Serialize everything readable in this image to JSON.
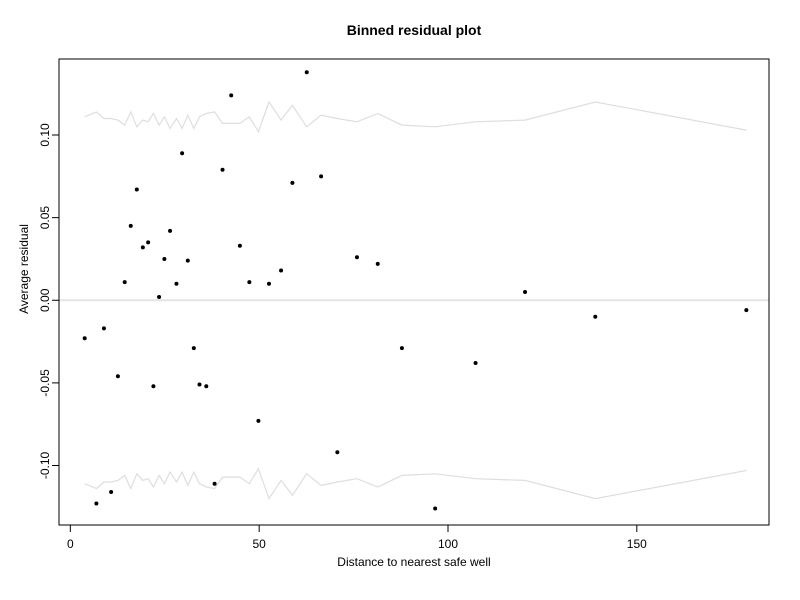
{
  "chart_data": {
    "type": "scatter",
    "title": "Binned residual plot",
    "xlabel": "Distance to nearest safe well",
    "ylabel": "Average residual",
    "xlim": [
      -3,
      185
    ],
    "ylim": [
      -0.136,
      0.146
    ],
    "x_ticks": [
      0,
      50,
      100,
      150
    ],
    "x_tick_labels": [
      "0",
      "50",
      "100",
      "150"
    ],
    "y_ticks": [
      -0.1,
      -0.05,
      0.0,
      0.05,
      0.1
    ],
    "y_tick_labels": [
      "-0.10",
      "-0.05",
      "0.00",
      "0.05",
      "0.10"
    ],
    "grid": false,
    "legend": "none",
    "colors": {
      "points": "#000000",
      "bands": "#dedede",
      "zero_line": "#e4e4e4",
      "frame": "#000000"
    },
    "reference_line": {
      "y": 0.0
    },
    "points": [
      {
        "x": 3.8,
        "y": -0.023
      },
      {
        "x": 6.9,
        "y": -0.123
      },
      {
        "x": 8.9,
        "y": -0.017
      },
      {
        "x": 10.8,
        "y": -0.116
      },
      {
        "x": 12.6,
        "y": -0.046
      },
      {
        "x": 14.4,
        "y": 0.011
      },
      {
        "x": 16.0,
        "y": 0.045
      },
      {
        "x": 17.6,
        "y": 0.067
      },
      {
        "x": 19.2,
        "y": 0.032
      },
      {
        "x": 20.6,
        "y": 0.035
      },
      {
        "x": 22.0,
        "y": -0.052
      },
      {
        "x": 23.5,
        "y": 0.002
      },
      {
        "x": 24.9,
        "y": 0.025
      },
      {
        "x": 26.4,
        "y": 0.042
      },
      {
        "x": 28.1,
        "y": 0.01
      },
      {
        "x": 29.6,
        "y": 0.089
      },
      {
        "x": 31.1,
        "y": 0.024
      },
      {
        "x": 32.7,
        "y": -0.029
      },
      {
        "x": 34.2,
        "y": -0.051
      },
      {
        "x": 36.0,
        "y": -0.052
      },
      {
        "x": 38.2,
        "y": -0.111
      },
      {
        "x": 40.3,
        "y": 0.079
      },
      {
        "x": 42.6,
        "y": 0.124
      },
      {
        "x": 44.9,
        "y": 0.033
      },
      {
        "x": 47.4,
        "y": 0.011
      },
      {
        "x": 49.8,
        "y": -0.073
      },
      {
        "x": 52.6,
        "y": 0.01
      },
      {
        "x": 55.8,
        "y": 0.018
      },
      {
        "x": 58.8,
        "y": 0.071
      },
      {
        "x": 62.6,
        "y": 0.138
      },
      {
        "x": 66.4,
        "y": 0.075
      },
      {
        "x": 70.7,
        "y": -0.092
      },
      {
        "x": 75.9,
        "y": 0.026
      },
      {
        "x": 81.4,
        "y": 0.022
      },
      {
        "x": 87.8,
        "y": -0.029
      },
      {
        "x": 96.6,
        "y": -0.126
      },
      {
        "x": 107.3,
        "y": -0.038
      },
      {
        "x": 120.4,
        "y": 0.005
      },
      {
        "x": 139.0,
        "y": -0.01
      },
      {
        "x": 179.0,
        "y": -0.006
      }
    ],
    "band_upper": [
      {
        "x": 3.8,
        "y": 0.111
      },
      {
        "x": 6.9,
        "y": 0.114
      },
      {
        "x": 8.9,
        "y": 0.11
      },
      {
        "x": 10.8,
        "y": 0.11
      },
      {
        "x": 12.6,
        "y": 0.109
      },
      {
        "x": 14.4,
        "y": 0.106
      },
      {
        "x": 16.0,
        "y": 0.114
      },
      {
        "x": 17.6,
        "y": 0.105
      },
      {
        "x": 19.2,
        "y": 0.109
      },
      {
        "x": 20.6,
        "y": 0.108
      },
      {
        "x": 22.0,
        "y": 0.113
      },
      {
        "x": 23.5,
        "y": 0.106
      },
      {
        "x": 24.9,
        "y": 0.111
      },
      {
        "x": 26.4,
        "y": 0.104
      },
      {
        "x": 28.1,
        "y": 0.11
      },
      {
        "x": 29.6,
        "y": 0.104
      },
      {
        "x": 31.1,
        "y": 0.112
      },
      {
        "x": 32.7,
        "y": 0.104
      },
      {
        "x": 34.2,
        "y": 0.111
      },
      {
        "x": 36.0,
        "y": 0.113
      },
      {
        "x": 38.2,
        "y": 0.114
      },
      {
        "x": 40.3,
        "y": 0.107
      },
      {
        "x": 42.6,
        "y": 0.107
      },
      {
        "x": 44.9,
        "y": 0.107
      },
      {
        "x": 47.4,
        "y": 0.111
      },
      {
        "x": 49.8,
        "y": 0.102
      },
      {
        "x": 52.6,
        "y": 0.12
      },
      {
        "x": 55.8,
        "y": 0.109
      },
      {
        "x": 58.8,
        "y": 0.118
      },
      {
        "x": 62.6,
        "y": 0.105
      },
      {
        "x": 66.4,
        "y": 0.112
      },
      {
        "x": 70.7,
        "y": 0.11
      },
      {
        "x": 75.9,
        "y": 0.108
      },
      {
        "x": 81.4,
        "y": 0.113
      },
      {
        "x": 87.8,
        "y": 0.106
      },
      {
        "x": 96.6,
        "y": 0.105
      },
      {
        "x": 107.3,
        "y": 0.108
      },
      {
        "x": 120.4,
        "y": 0.109
      },
      {
        "x": 139.0,
        "y": 0.12
      },
      {
        "x": 179.0,
        "y": 0.103
      }
    ],
    "band_lower": [
      {
        "x": 3.8,
        "y": -0.111
      },
      {
        "x": 6.9,
        "y": -0.114
      },
      {
        "x": 8.9,
        "y": -0.11
      },
      {
        "x": 10.8,
        "y": -0.11
      },
      {
        "x": 12.6,
        "y": -0.109
      },
      {
        "x": 14.4,
        "y": -0.106
      },
      {
        "x": 16.0,
        "y": -0.114
      },
      {
        "x": 17.6,
        "y": -0.105
      },
      {
        "x": 19.2,
        "y": -0.109
      },
      {
        "x": 20.6,
        "y": -0.108
      },
      {
        "x": 22.0,
        "y": -0.113
      },
      {
        "x": 23.5,
        "y": -0.106
      },
      {
        "x": 24.9,
        "y": -0.111
      },
      {
        "x": 26.4,
        "y": -0.104
      },
      {
        "x": 28.1,
        "y": -0.11
      },
      {
        "x": 29.6,
        "y": -0.104
      },
      {
        "x": 31.1,
        "y": -0.112
      },
      {
        "x": 32.7,
        "y": -0.104
      },
      {
        "x": 34.2,
        "y": -0.111
      },
      {
        "x": 36.0,
        "y": -0.113
      },
      {
        "x": 38.2,
        "y": -0.114
      },
      {
        "x": 40.3,
        "y": -0.107
      },
      {
        "x": 42.6,
        "y": -0.107
      },
      {
        "x": 44.9,
        "y": -0.107
      },
      {
        "x": 47.4,
        "y": -0.111
      },
      {
        "x": 49.8,
        "y": -0.102
      },
      {
        "x": 52.6,
        "y": -0.12
      },
      {
        "x": 55.8,
        "y": -0.109
      },
      {
        "x": 58.8,
        "y": -0.118
      },
      {
        "x": 62.6,
        "y": -0.105
      },
      {
        "x": 66.4,
        "y": -0.112
      },
      {
        "x": 70.7,
        "y": -0.11
      },
      {
        "x": 75.9,
        "y": -0.108
      },
      {
        "x": 81.4,
        "y": -0.113
      },
      {
        "x": 87.8,
        "y": -0.106
      },
      {
        "x": 96.6,
        "y": -0.105
      },
      {
        "x": 107.3,
        "y": -0.108
      },
      {
        "x": 120.4,
        "y": -0.109
      },
      {
        "x": 139.0,
        "y": -0.12
      },
      {
        "x": 179.0,
        "y": -0.103
      }
    ]
  }
}
